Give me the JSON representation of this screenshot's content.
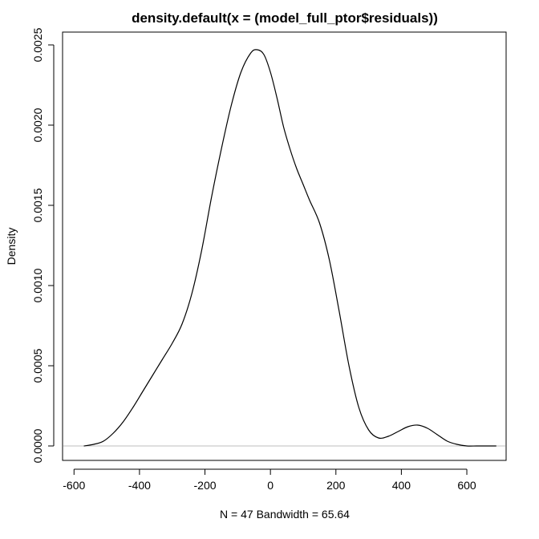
{
  "chart_data": {
    "type": "line",
    "title": "density.default(x = (model_full_ptor$residuals))",
    "xlabel": "N = 47   Bandwidth = 65.64",
    "ylabel": "Density",
    "xlim": [
      -635,
      720
    ],
    "ylim": [
      -9e-05,
      0.00258
    ],
    "x_ticks": [
      -600,
      -400,
      -200,
      0,
      200,
      400,
      600
    ],
    "x_tick_labels": [
      "-600",
      "-400",
      "-200",
      "0",
      "200",
      "400",
      "600"
    ],
    "y_ticks": [
      0,
      0.0005,
      0.001,
      0.0015,
      0.002,
      0.0025
    ],
    "y_tick_labels": [
      "0.0000",
      "0.0005",
      "0.0010",
      "0.0015",
      "0.0020",
      "0.0025"
    ],
    "zero_line": true,
    "grid": false,
    "line_color": "#000000",
    "zero_line_color": "#bebebe",
    "series": [
      {
        "x": [
          -570,
          -540,
          -510,
          -480,
          -450,
          -420,
          -390,
          -360,
          -330,
          -300,
          -270,
          -240,
          -210,
          -180,
          -150,
          -120,
          -90,
          -60,
          -40,
          -20,
          0,
          20,
          40,
          60,
          80,
          100,
          120,
          150,
          180,
          210,
          240,
          270,
          300,
          330,
          360,
          390,
          420,
          450,
          480,
          510,
          540,
          570,
          600,
          630,
          660,
          690
        ],
        "y": [
          0.0,
          1e-05,
          3e-05,
          8e-05,
          0.00015,
          0.00024,
          0.00034,
          0.00044,
          0.00054,
          0.00064,
          0.00076,
          0.00095,
          0.00122,
          0.00155,
          0.00185,
          0.00212,
          0.00233,
          0.00245,
          0.00247,
          0.00244,
          0.00233,
          0.00217,
          0.00199,
          0.00185,
          0.00173,
          0.00163,
          0.00153,
          0.00139,
          0.00116,
          0.00084,
          0.0005,
          0.00024,
          0.0001,
          5e-05,
          6e-05,
          9e-05,
          0.00012,
          0.00013,
          0.00011,
          7e-05,
          3e-05,
          1e-05,
          0.0,
          0.0,
          0.0,
          0.0
        ]
      }
    ]
  }
}
